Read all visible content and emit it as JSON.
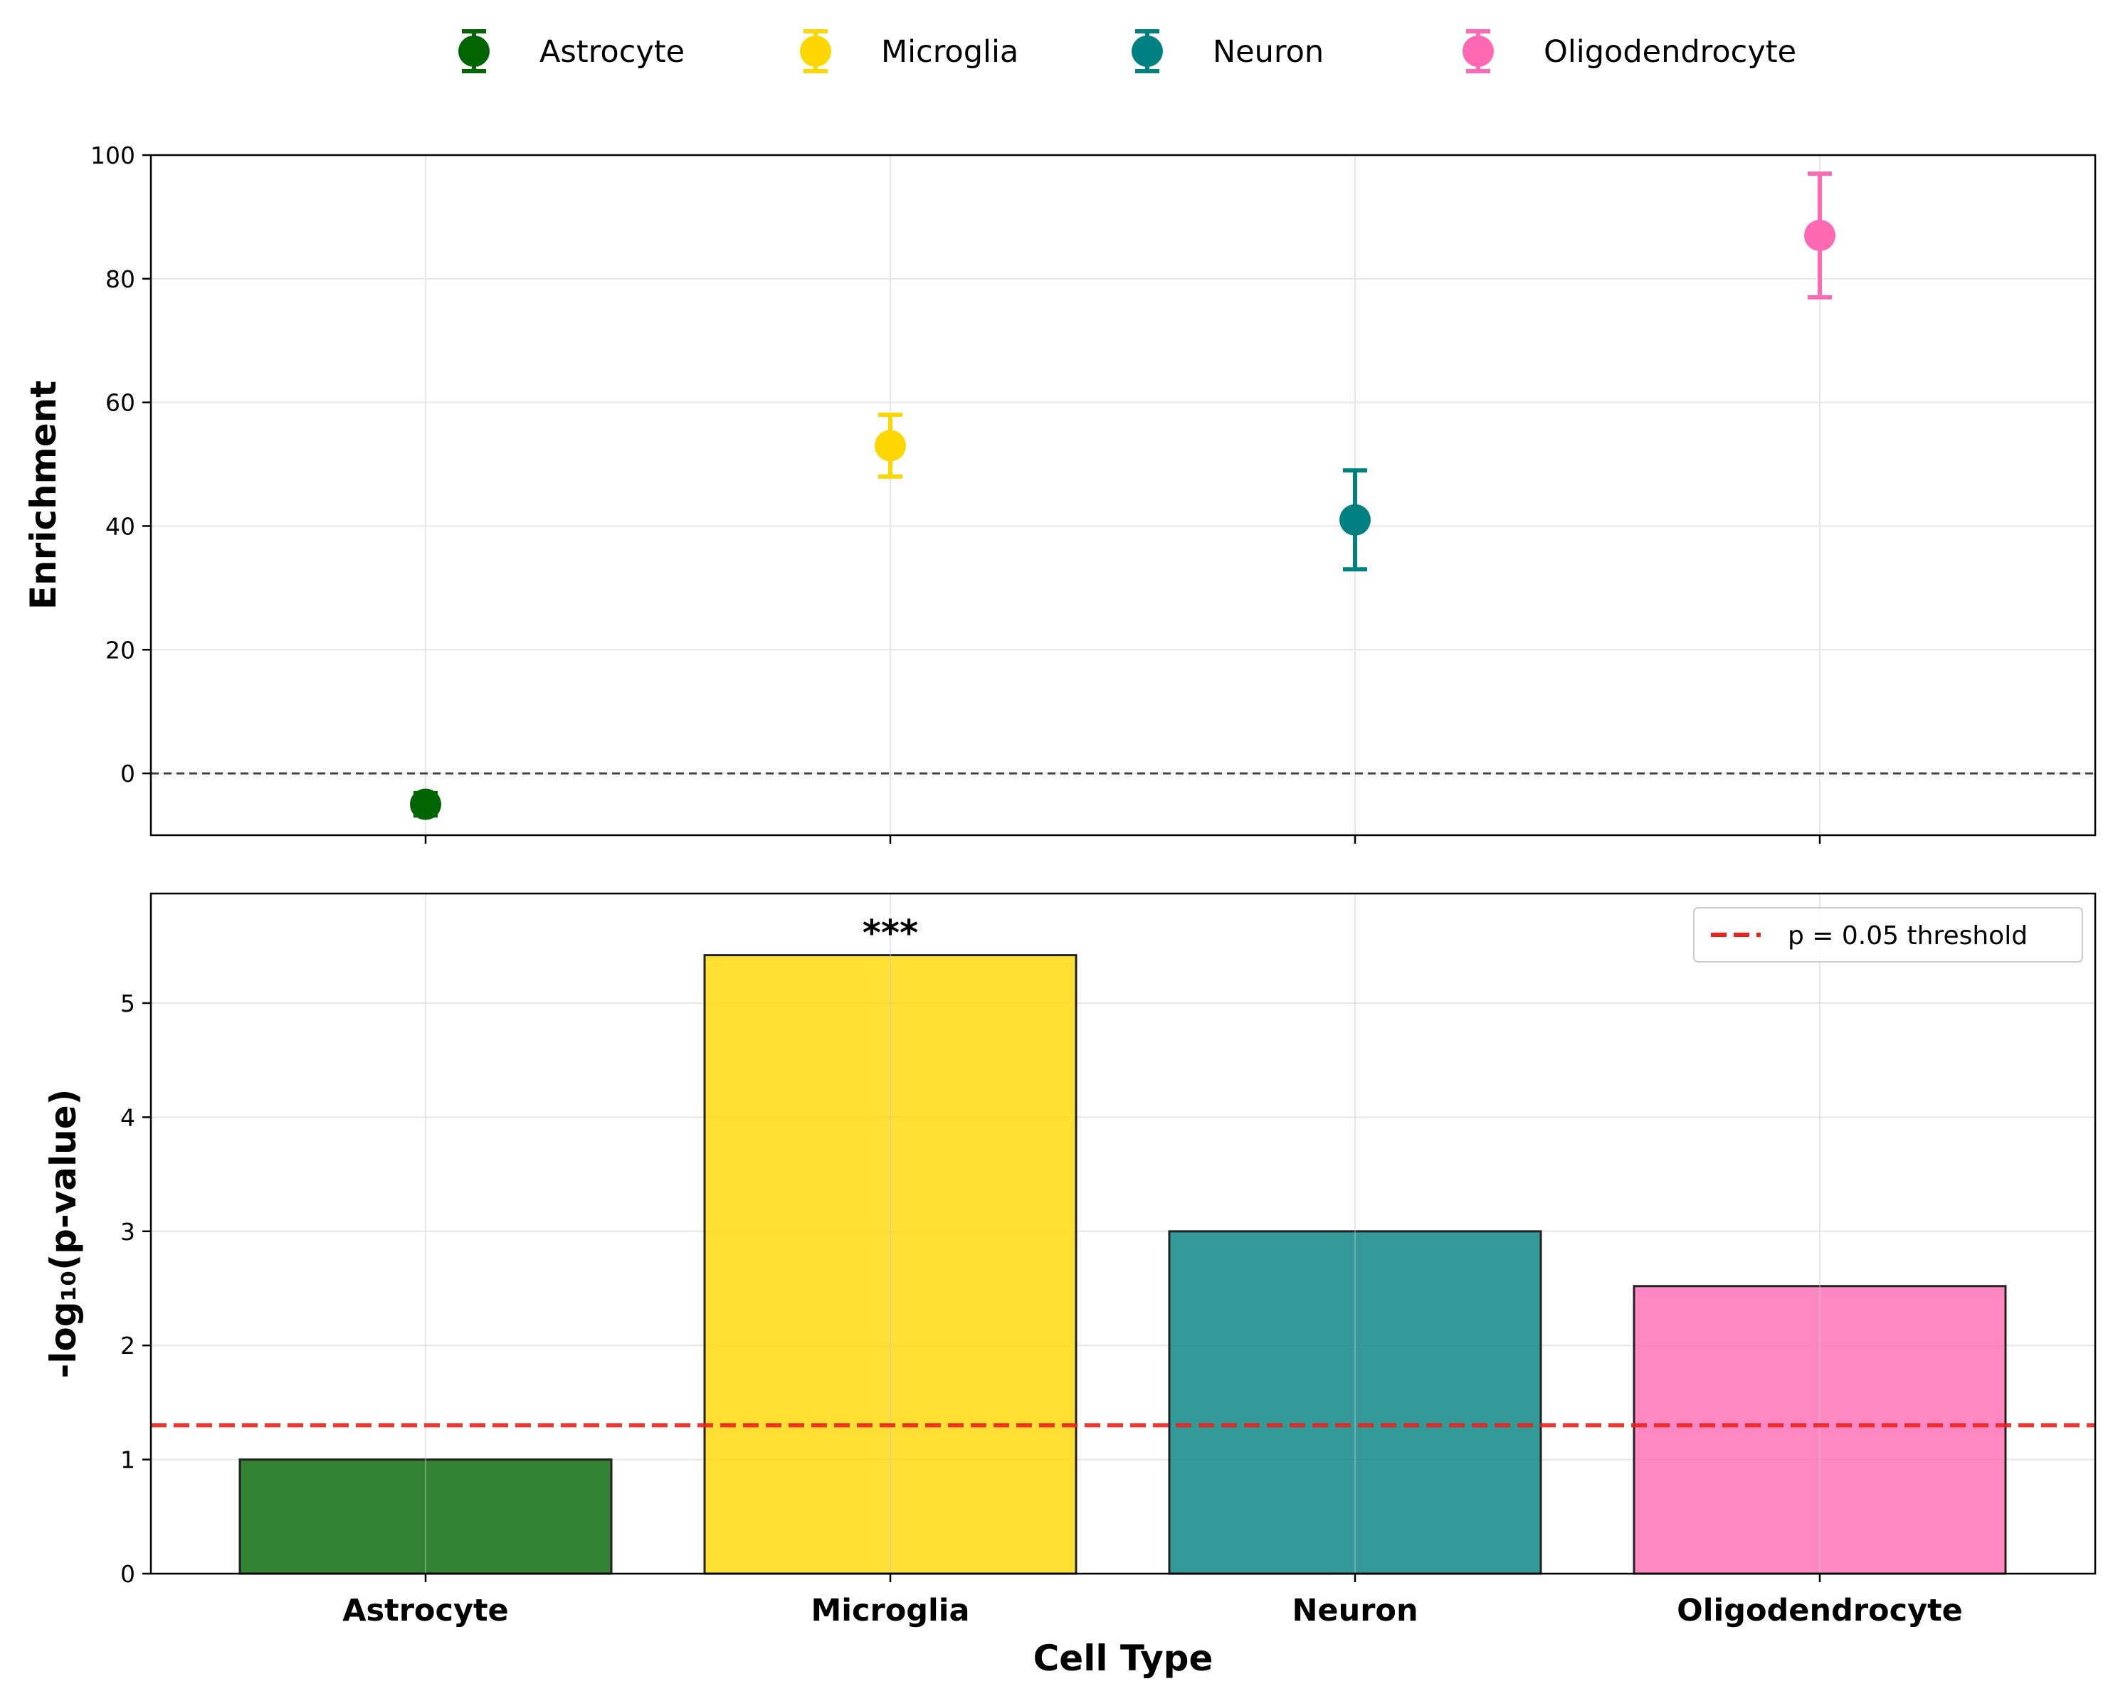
{
  "chart_data": [
    {
      "type": "scatter",
      "panel": "top",
      "categories": [
        "Astrocyte",
        "Microglia",
        "Neuron",
        "Oligodendrocyte"
      ],
      "series": [
        {
          "name": "Astrocyte",
          "color": "#006400",
          "y": -5,
          "err": 1.8
        },
        {
          "name": "Microglia",
          "color": "#FFD700",
          "y": 53,
          "err": 5
        },
        {
          "name": "Neuron",
          "color": "#008080",
          "y": 41,
          "err": 8
        },
        {
          "name": "Oligodendrocyte",
          "color": "#FF69B4",
          "y": 87,
          "err": 10
        }
      ],
      "ylabel": "Enrichment",
      "ylim": [
        -10,
        100
      ],
      "yticks": [
        0,
        20,
        40,
        60,
        80,
        100
      ],
      "reference_line": 0,
      "grid": true,
      "legend": "top-center, outside"
    },
    {
      "type": "bar",
      "panel": "bottom",
      "categories": [
        "Astrocyte",
        "Microglia",
        "Neuron",
        "Oligodendrocyte"
      ],
      "values": [
        1.0,
        5.42,
        3.0,
        2.52
      ],
      "colors": [
        "#006400",
        "#FFD700",
        "#008080",
        "#FF69B4"
      ],
      "annotations": [
        {
          "category": "Microglia",
          "text": "***"
        }
      ],
      "threshold": {
        "value": 1.301,
        "label": "p = 0.05 threshold",
        "color": "#E8231E"
      },
      "xlabel": "Cell Type",
      "ylabel": "-log₁₀(p-value)",
      "ylim": [
        0,
        5.96
      ],
      "yticks": [
        0,
        1,
        2,
        3,
        4,
        5
      ],
      "grid": true,
      "legend": "top-right"
    }
  ]
}
